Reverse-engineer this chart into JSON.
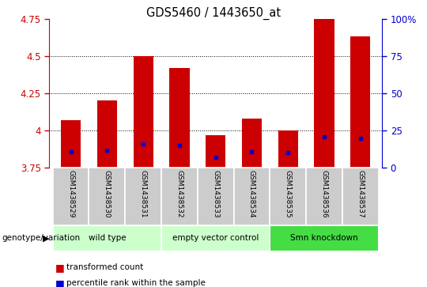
{
  "title": "GDS5460 / 1443650_at",
  "samples": [
    "GSM1438529",
    "GSM1438530",
    "GSM1438531",
    "GSM1438532",
    "GSM1438533",
    "GSM1438534",
    "GSM1438535",
    "GSM1438536",
    "GSM1438537"
  ],
  "bar_tops": [
    4.07,
    4.2,
    4.5,
    4.42,
    3.97,
    4.08,
    4.0,
    4.75,
    4.63
  ],
  "bar_bottom": 3.75,
  "blue_vals": [
    3.86,
    3.87,
    3.91,
    3.9,
    3.82,
    3.86,
    3.85,
    3.96,
    3.95
  ],
  "ylim_left": [
    3.75,
    4.75
  ],
  "ylim_right": [
    0,
    100
  ],
  "yticks_left": [
    3.75,
    4.0,
    4.25,
    4.5,
    4.75
  ],
  "yticks_right": [
    0,
    25,
    50,
    75,
    100
  ],
  "ytick_labels_left": [
    "3.75",
    "4",
    "4.25",
    "4.5",
    "4.75"
  ],
  "ytick_labels_right": [
    "0",
    "25",
    "50",
    "75",
    "100%"
  ],
  "bar_color": "#cc0000",
  "blue_color": "#0000cc",
  "left_axis_color": "#cc0000",
  "right_axis_color": "#0000cc",
  "group_configs": [
    {
      "label": "wild type",
      "start": 0,
      "end": 2,
      "color": "#ccffcc"
    },
    {
      "label": "empty vector control",
      "start": 3,
      "end": 5,
      "color": "#ccffcc"
    },
    {
      "label": "Smn knockdown",
      "start": 6,
      "end": 8,
      "color": "#44dd44"
    }
  ],
  "legend_items": [
    {
      "color": "#cc0000",
      "label": "transformed count"
    },
    {
      "color": "#0000cc",
      "label": "percentile rank within the sample"
    }
  ],
  "bar_width": 0.55,
  "grid_yticks": [
    4.0,
    4.25,
    4.5
  ],
  "sample_box_color": "#cccccc",
  "genotype_label": "genotype/variation"
}
